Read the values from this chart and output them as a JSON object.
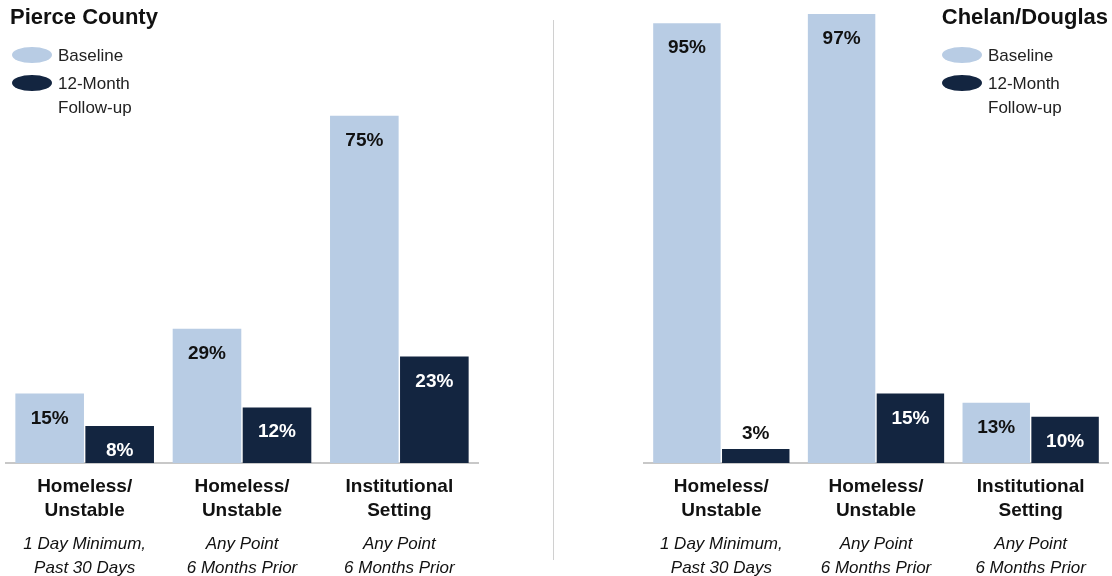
{
  "chart_data": [
    {
      "type": "bar",
      "title": "Pierce County",
      "categories": [
        "Homeless/\nUnstable\n\n1 Day Minimum,\nPast 30 Days",
        "Homeless/\nUnstable\n\nAny Point\n6 Months Prior",
        "Institutional\nSetting\n\nAny Point\n6 Months Prior"
      ],
      "ylim": [
        0,
        100
      ],
      "tick_labels": "x",
      "grid": false,
      "legend": "top left",
      "series": [
        {
          "name": "Baseline",
          "color": "#b8cce4",
          "values": [
            15,
            29,
            75
          ],
          "value_labels": [
            "15%",
            "29%",
            "75%"
          ]
        },
        {
          "name": "12-Month Follow-up",
          "color": "#132540",
          "values": [
            8,
            12,
            23
          ],
          "value_labels": [
            "8%",
            "12%",
            "23%"
          ]
        }
      ]
    },
    {
      "type": "bar",
      "title": "Chelan/Douglas",
      "categories": [
        "Homeless/\nUnstable\n\n1 Day Minimum,\nPast 30 Days",
        "Homeless/\nUnstable\n\nAny Point\n6 Months Prior",
        "Institutional\nSetting\n\nAny Point\n6 Months Prior"
      ],
      "ylim": [
        0,
        100
      ],
      "tick_labels": "x",
      "grid": false,
      "legend": "top right",
      "series": [
        {
          "name": "Baseline",
          "color": "#b8cce4",
          "values": [
            95,
            97,
            13
          ],
          "value_labels": [
            "95%",
            "97%",
            "13%"
          ]
        },
        {
          "name": "12-Month Follow-up",
          "color": "#132540",
          "values": [
            3,
            15,
            10
          ],
          "value_labels": [
            "3%",
            "15%",
            "10%"
          ]
        }
      ]
    }
  ]
}
